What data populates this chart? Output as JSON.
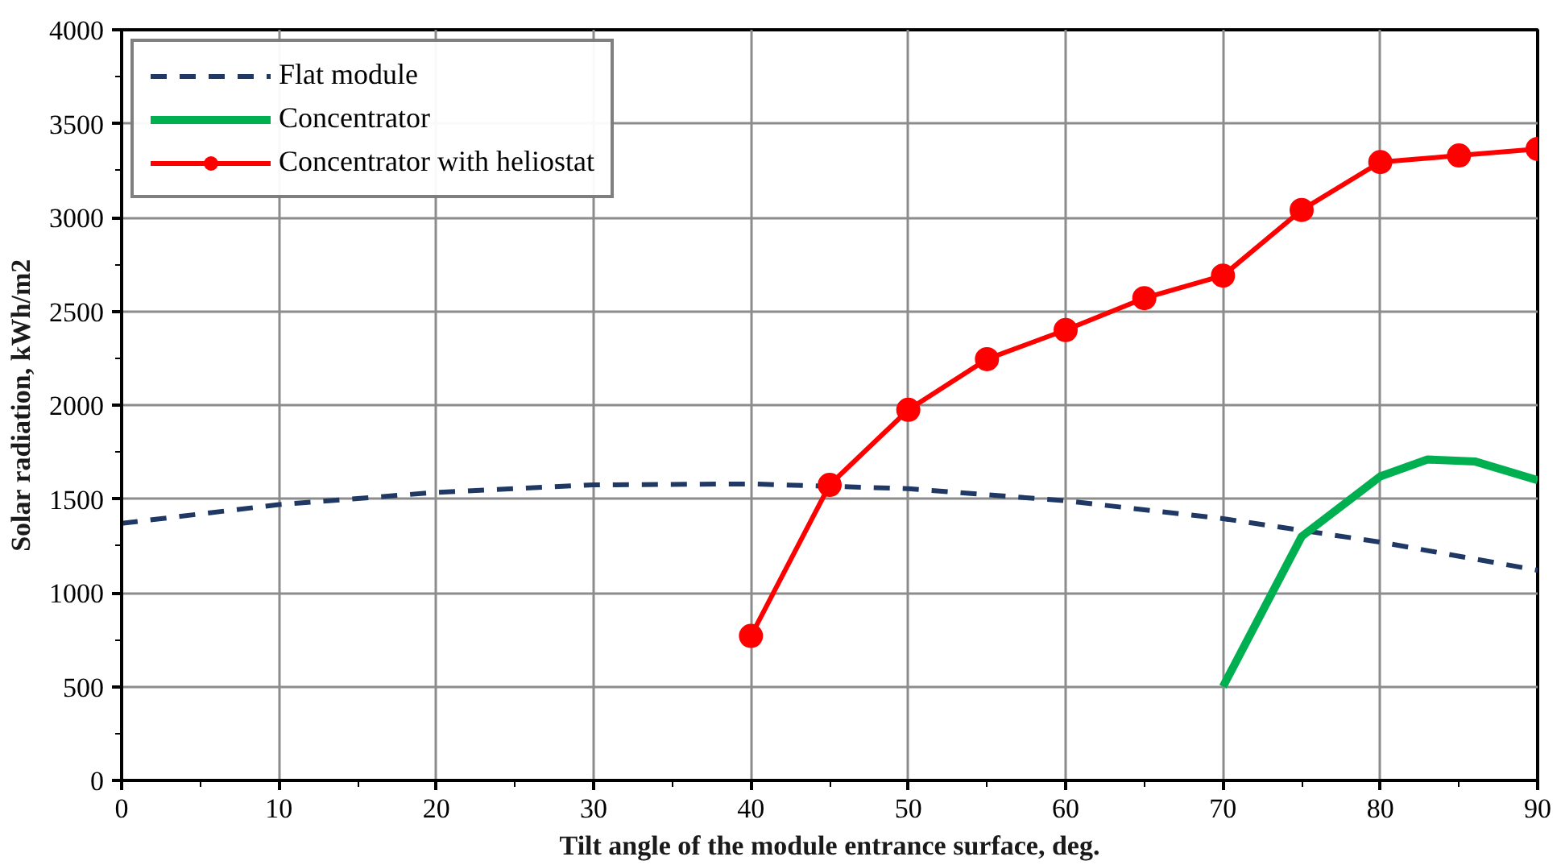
{
  "chart_data": {
    "type": "line",
    "xlabel": "Tilt angle of the module entrance surface, deg.",
    "ylabel": "Solar radiation, kWh/m2",
    "xlim": [
      0,
      90
    ],
    "xticks": [
      0,
      10,
      20,
      30,
      40,
      50,
      60,
      70,
      80,
      90
    ],
    "ylim": [
      0,
      4000
    ],
    "yticks": [
      0,
      500,
      1000,
      1500,
      2000,
      2500,
      3000,
      3500,
      4000
    ],
    "grid": true,
    "legend": "top left",
    "series": [
      {
        "name": "Flat module",
        "color": "#1f3864",
        "line_style": "dashed",
        "marker": "none",
        "x": [
          0,
          10,
          20,
          30,
          40,
          50,
          60,
          70,
          80,
          90
        ],
        "values": [
          1370,
          1470,
          1535,
          1575,
          1580,
          1555,
          1490,
          1395,
          1270,
          1120
        ]
      },
      {
        "name": "Concentrator",
        "color": "#00b050",
        "line_style": "solid",
        "marker": "none",
        "x": [
          70,
          75,
          80,
          83,
          86,
          90
        ],
        "values": [
          500,
          1300,
          1620,
          1710,
          1700,
          1600
        ]
      },
      {
        "name": "Concentrator with heliostat",
        "color": "#ff0000",
        "line_style": "solid",
        "marker": "circle",
        "x": [
          40,
          45,
          50,
          55,
          60,
          65,
          70,
          75,
          80,
          85,
          90
        ],
        "values": [
          770,
          1575,
          1975,
          2245,
          2400,
          2570,
          2690,
          3040,
          3295,
          3330,
          3365
        ]
      }
    ]
  }
}
